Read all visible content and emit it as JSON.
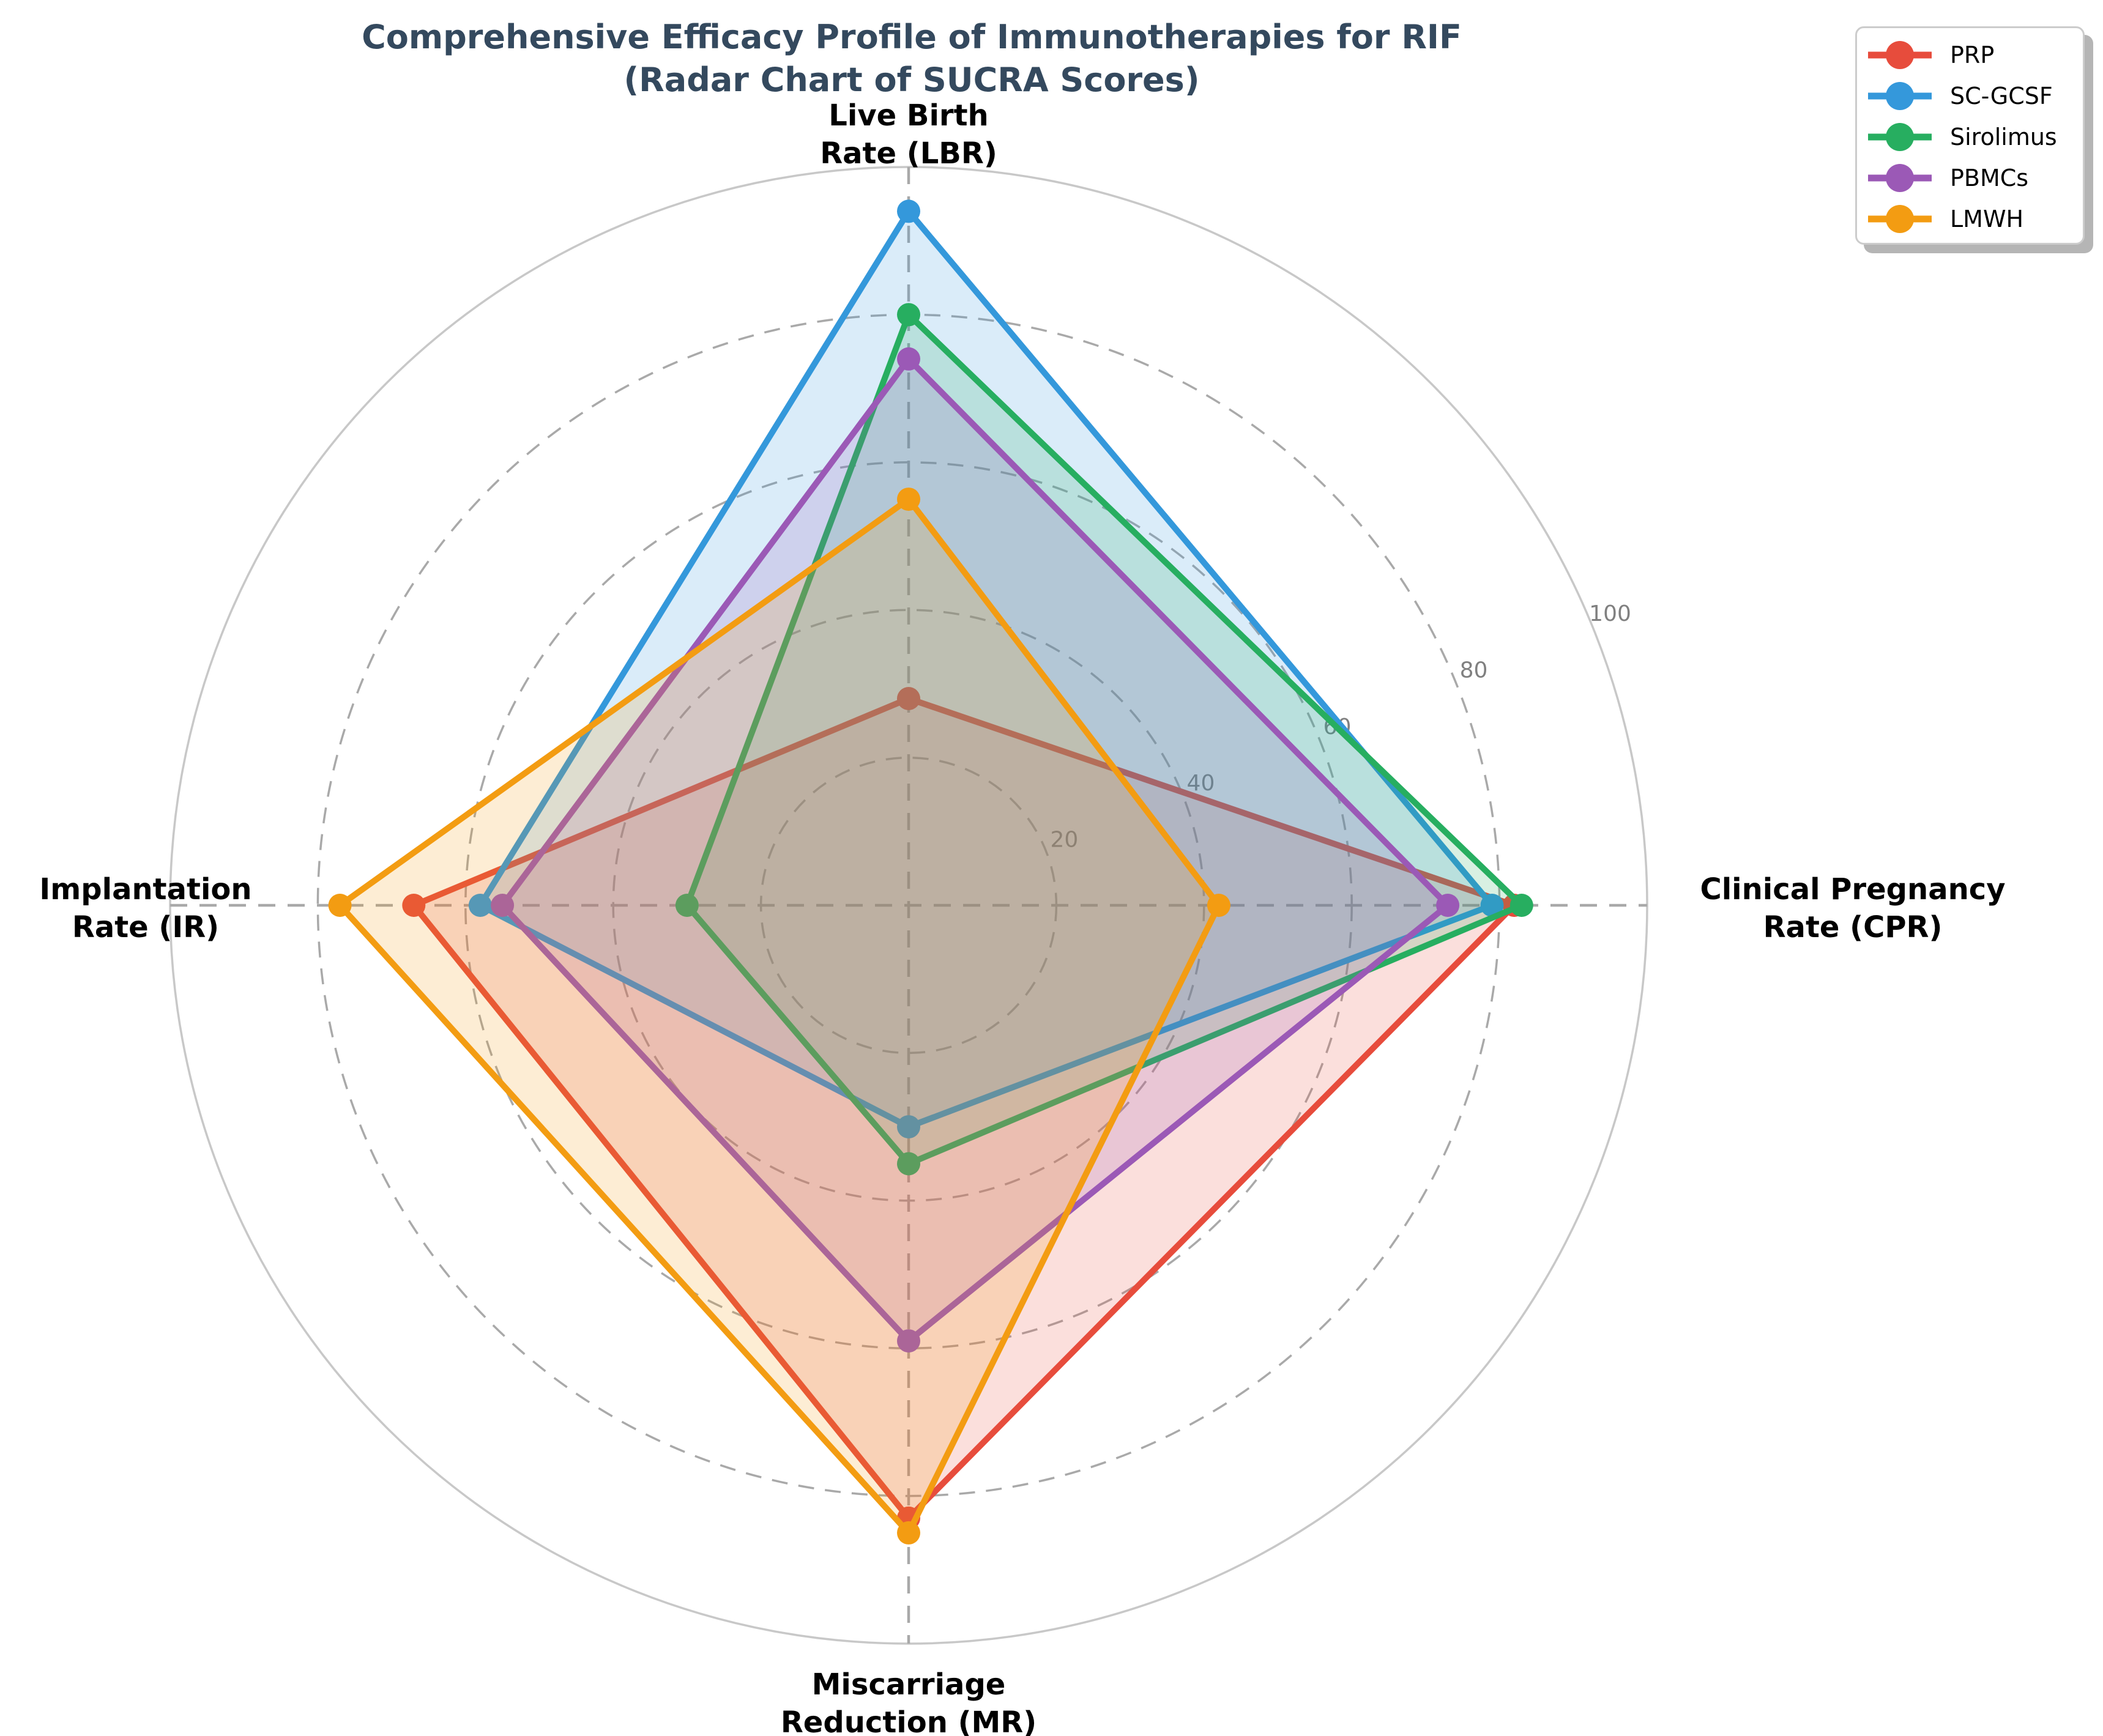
{
  "title": {
    "line1": "Comprehensive Efficacy Profile of Immunotherapies for RIF",
    "line2": "(Radar Chart of SUCRA Scores)"
  },
  "chart_data": {
    "type": "radar",
    "categories": [
      "Live Birth Rate (LBR)",
      "Clinical Pregnancy Rate (CPR)",
      "Miscarriage Reduction (MR)",
      "Implantation Rate (IR)"
    ],
    "category_label_lines": [
      [
        "Live Birth",
        "Rate (LBR)"
      ],
      [
        "Clinical Pregnancy",
        "Rate (CPR)"
      ],
      [
        "Miscarriage",
        "Reduction (MR)"
      ],
      [
        "Implantation",
        "Rate (IR)"
      ]
    ],
    "series": [
      {
        "name": "PRP",
        "color": "#e74c3c",
        "values": [
          28,
          82,
          83,
          67
        ]
      },
      {
        "name": "SC-GCSF",
        "color": "#3498db",
        "values": [
          94,
          79,
          30,
          58
        ]
      },
      {
        "name": "Sirolimus",
        "color": "#27ae60",
        "values": [
          80,
          83,
          35,
          30
        ]
      },
      {
        "name": "PBMCs",
        "color": "#9b59b6",
        "values": [
          74,
          73,
          59,
          55
        ]
      },
      {
        "name": "LMWH",
        "color": "#f39c12",
        "values": [
          55,
          42,
          85,
          77
        ]
      }
    ],
    "radial_ticks": [
      20,
      40,
      60,
      80,
      100
    ],
    "r_max": 100,
    "grid": "dashed",
    "legend_position": "top-right",
    "fill_opacity": 0.18
  },
  "colors": {
    "title": "#34495e",
    "grid_dashed": "#a9a9a9",
    "outer_circle": "#c8c8c8",
    "tick_label": "#808080",
    "axis_label": "#000000",
    "legend_border": "#cccccc",
    "background": "#ffffff"
  }
}
